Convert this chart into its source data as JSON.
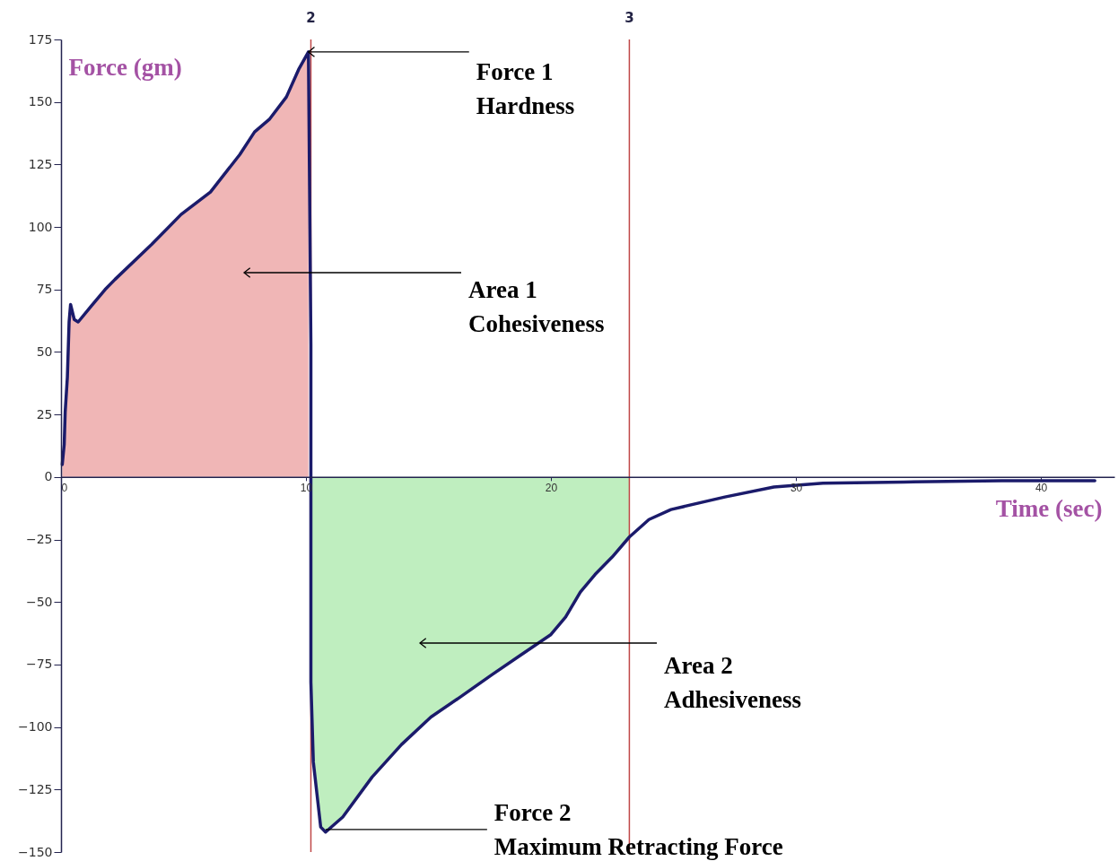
{
  "chart_data": {
    "type": "line",
    "xlabel": "Time (sec)",
    "ylabel": "Force (gm)",
    "xlim": [
      0,
      43
    ],
    "ylim": [
      -150,
      175
    ],
    "xticks": [
      0,
      10,
      20,
      30,
      40
    ],
    "yticks": [
      -150,
      -125,
      -100,
      -75,
      -50,
      -25,
      0,
      25,
      50,
      75,
      100,
      125,
      150,
      175
    ],
    "series": [
      {
        "type": "area",
        "color": "#f0b6b6",
        "x": [
          0.05,
          0.13,
          0.17,
          0.26,
          0.33,
          0.39,
          0.54,
          0.7,
          1.2,
          1.8,
          2.2,
          3.7,
          4.9,
          6.1,
          7.3,
          7.9,
          8.5,
          9.2,
          9.7,
          10.1
        ],
        "values": [
          5,
          13,
          26,
          40,
          62,
          69,
          63,
          62,
          68,
          75,
          79,
          93,
          105,
          114,
          129,
          138,
          143,
          152,
          163,
          170
        ]
      },
      {
        "type": "area",
        "color": "#bfeebf",
        "x": [
          10.2,
          10.3,
          10.6,
          10.8,
          11.5,
          12.7,
          13.9,
          15.1,
          16.3,
          17.6,
          18.8,
          20.0,
          20.6,
          21.2,
          21.8,
          22.5,
          23.2
        ],
        "values": [
          -82,
          -114,
          -140,
          -142,
          -136,
          -120,
          -107,
          -96,
          -88,
          -79,
          -71,
          -63,
          -56,
          -46,
          -39,
          -32,
          -24
        ]
      },
      {
        "color": "#1b1b6b",
        "x": [
          0.05,
          0.13,
          0.17,
          0.26,
          0.33,
          0.39,
          0.54,
          0.7,
          1.2,
          1.8,
          2.2,
          3.7,
          4.9,
          6.1,
          7.3,
          7.9,
          8.5,
          9.2,
          9.7,
          10.1,
          10.2,
          10.2,
          10.3,
          10.6,
          10.8,
          11.5,
          12.7,
          13.9,
          15.1,
          16.3,
          17.6,
          18.8,
          20.0,
          20.6,
          21.2,
          21.8,
          22.5,
          23.2,
          24.0,
          24.9,
          27.1,
          29.1,
          31.1,
          34.4,
          38.4,
          42.2
        ],
        "values": [
          5,
          13,
          26,
          40,
          62,
          69,
          63,
          62,
          68,
          75,
          79,
          93,
          105,
          114,
          129,
          138,
          143,
          152,
          163,
          170,
          53,
          -82,
          -114,
          -140,
          -142,
          -136,
          -120,
          -107,
          -96,
          -88,
          -79,
          -71,
          -63,
          -56,
          -46,
          -39,
          -32,
          -24,
          -17,
          -13,
          -8,
          -4,
          -2.5,
          -2,
          -1.5,
          -1.5
        ]
      }
    ],
    "ref_lines": [
      {
        "axis": "x",
        "value": 10.2,
        "color": "#c04848"
      },
      {
        "axis": "x",
        "value": 23.2,
        "color": "#c04848"
      }
    ],
    "annotations": [
      {
        "text": "Force 1\nHardness",
        "x": 10.1,
        "y": 170
      },
      "Area 1\nCohesiveness",
      "Area 2\nAdhesiveness",
      {
        "text": "Force 2\nMaximum Retracting Force",
        "x": 10.8,
        "y": -141
      },
      {
        "text": "2",
        "x": 10.2,
        "y": 175
      },
      {
        "text": "3",
        "x": 23.2,
        "y": 175
      }
    ]
  }
}
